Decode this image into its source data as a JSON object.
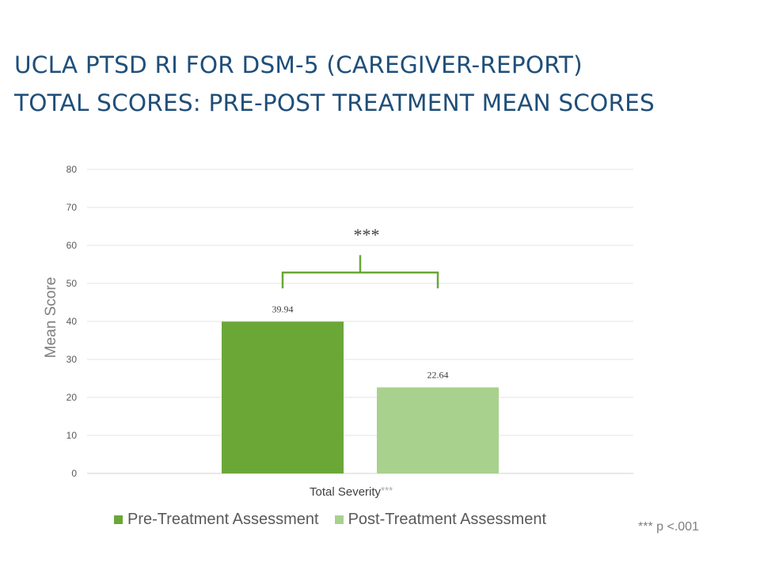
{
  "title": {
    "line1": "UCLA PTSD RI FOR DSM-5 (CAREGIVER-REPORT)",
    "line2": "TOTAL SCORES: PRE-POST TREATMENT MEAN SCORES"
  },
  "chart_data": {
    "type": "bar",
    "categories": [
      "Total Severity"
    ],
    "category_suffix": "***",
    "series": [
      {
        "name": "Pre-Treatment Assessment",
        "values": [
          39.94
        ],
        "color": "#6aa737"
      },
      {
        "name": "Post-Treatment Assessment",
        "values": [
          22.64
        ],
        "color": "#a9d18e"
      }
    ],
    "data_labels": [
      "39.94",
      "22.64"
    ],
    "ylabel": "Mean Score",
    "ylim": [
      0,
      80
    ],
    "yticks": [
      0,
      10,
      20,
      30,
      40,
      50,
      60,
      70,
      80
    ],
    "grid": true,
    "legend_position": "bottom",
    "significance": {
      "label": "***",
      "color": "#6aa737"
    }
  },
  "footnote": "*** p <.001"
}
